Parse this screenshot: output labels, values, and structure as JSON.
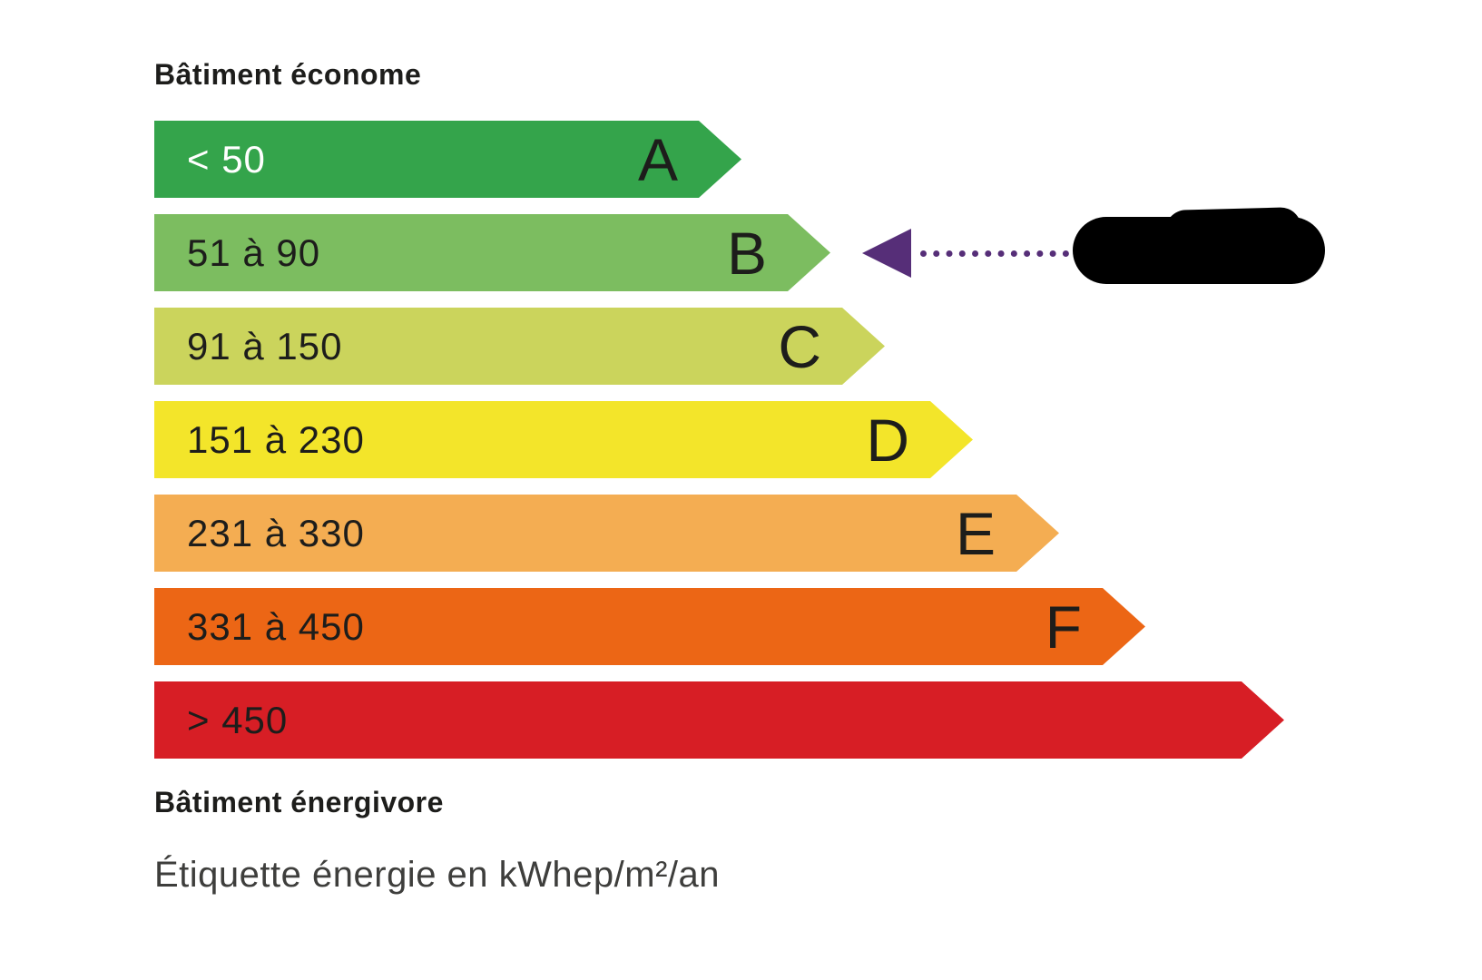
{
  "chart_data": {
    "type": "bar",
    "orientation": "horizontal",
    "title": "Étiquette énergie en kWhep/m²/an",
    "top_label": "Bâtiment économe",
    "bottom_label": "Bâtiment énergivore",
    "unit": "kWhep/m²/an",
    "selected_class": "B",
    "classes": [
      {
        "letter": "A",
        "range": "< 50",
        "color": "#34a44b",
        "text_color": "#ffffff",
        "bar_length": 647
      },
      {
        "letter": "B",
        "range": "51 à 90",
        "color": "#7cbd60",
        "text_color": "#1d1d1b",
        "bar_length": 745
      },
      {
        "letter": "C",
        "range": "91 à 150",
        "color": "#cbd45c",
        "text_color": "#1d1d1b",
        "bar_length": 805
      },
      {
        "letter": "D",
        "range": "151 à 230",
        "color": "#f3e52a",
        "text_color": "#1d1d1b",
        "bar_length": 902
      },
      {
        "letter": "E",
        "range": "231 à 330",
        "color": "#f4ad52",
        "text_color": "#1d1d1b",
        "bar_length": 997
      },
      {
        "letter": "F",
        "range": "331 à 450",
        "color": "#ec6615",
        "text_color": "#1d1d1b",
        "bar_length": 1092
      },
      {
        "letter": "",
        "range": "> 450",
        "color": "#d71e25",
        "text_color": "#1d1d1b",
        "bar_length": 1245
      }
    ],
    "annotation": {
      "pointer_color": "#562e78",
      "points_to_class": "B",
      "value_redacted": true
    }
  }
}
